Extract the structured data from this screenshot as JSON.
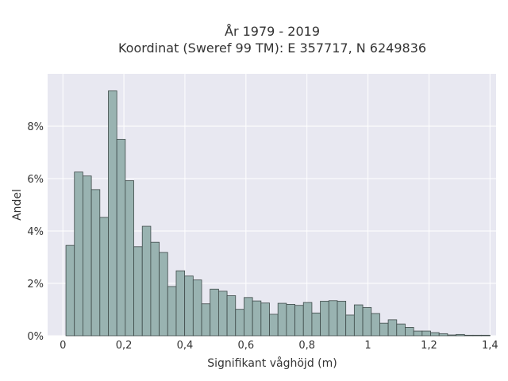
{
  "chart_data": {
    "type": "bar",
    "title_lines": [
      "År 1979 - 2019",
      "Koordinat (Sweref 99 TM): E 357717, N 6249836"
    ],
    "xlabel": "Signifikant våghöjd (m)",
    "ylabel": "Andel",
    "xlim": [
      -0.05,
      1.42
    ],
    "ylim": [
      0,
      0.1
    ],
    "grid": true,
    "x_ticks": [
      0,
      0.2,
      0.4,
      0.6,
      0.8,
      1.0,
      1.2,
      1.4
    ],
    "x_tick_labels": [
      "0",
      "0,2",
      "0,4",
      "0,6",
      "0,8",
      "1",
      "1,2",
      "1,4"
    ],
    "y_ticks": [
      0,
      0.02,
      0.04,
      0.06,
      0.08
    ],
    "y_tick_labels": [
      "0%",
      "2%",
      "4%",
      "6%",
      "8%"
    ],
    "bin_start": 0.01,
    "bin_width": 0.0278,
    "values": [
      0.0345,
      0.0625,
      0.061,
      0.0558,
      0.0452,
      0.0935,
      0.075,
      0.0592,
      0.034,
      0.0418,
      0.0357,
      0.0318,
      0.0188,
      0.0248,
      0.0228,
      0.0213,
      0.0122,
      0.0178,
      0.017,
      0.0153,
      0.0101,
      0.0146,
      0.0133,
      0.0125,
      0.0082,
      0.0124,
      0.012,
      0.0116,
      0.0127,
      0.0087,
      0.0132,
      0.0134,
      0.0132,
      0.0079,
      0.0118,
      0.0108,
      0.0085,
      0.0048,
      0.0061,
      0.0045,
      0.0032,
      0.0018,
      0.0018,
      0.0012,
      0.0008,
      0.0003,
      0.0005,
      0.0002,
      0.0002,
      0.0002
    ],
    "colors": {
      "bar_fill": "#99b3b1",
      "bar_stroke": "#3e4a49",
      "plot_bg": "#e8e8f1",
      "grid": "#ffffff"
    }
  }
}
